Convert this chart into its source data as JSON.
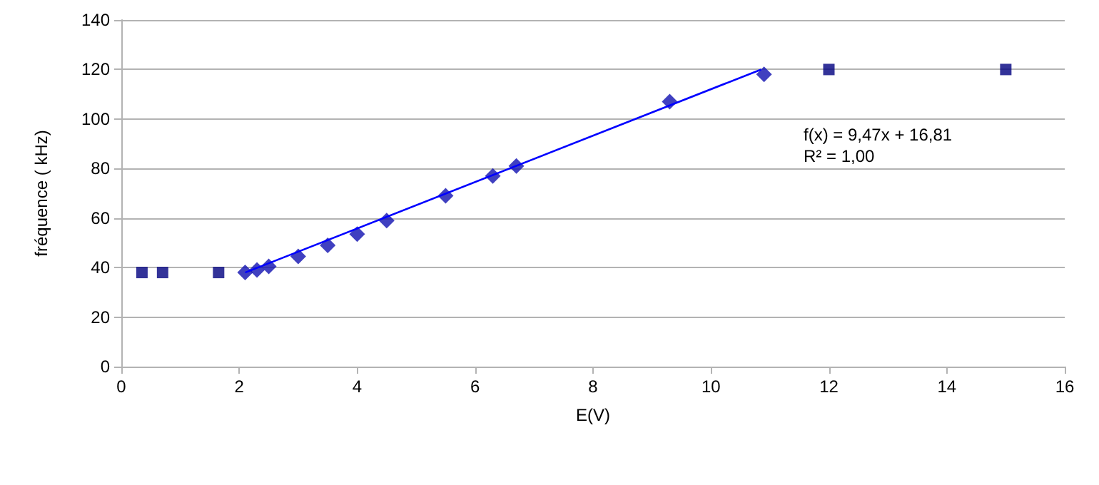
{
  "chart_data": {
    "type": "scatter",
    "xlabel": "E(V)",
    "ylabel": "fréquence ( kHz)",
    "xlim": [
      0,
      16
    ],
    "xticks": [
      0,
      2,
      4,
      6,
      8,
      10,
      12,
      14,
      16
    ],
    "ylim": [
      0,
      140
    ],
    "yticks": [
      0,
      20,
      40,
      60,
      80,
      100,
      120,
      140
    ],
    "grid": "y",
    "series": [
      {
        "color": "#000080",
        "marker": "square",
        "x": [
          0.35,
          0.7,
          1.65,
          12,
          15
        ],
        "values": [
          38,
          38,
          38,
          120,
          120
        ]
      },
      {
        "color": "#1010b0",
        "marker": "diamond",
        "x": [
          2.1,
          2.3,
          2.5,
          3,
          3.5,
          4,
          4.5,
          5.5,
          6.3,
          6.7,
          9.3,
          10.9
        ],
        "values": [
          38,
          39,
          40.5,
          44.5,
          49,
          53.5,
          59,
          69,
          77,
          81,
          107,
          118
        ]
      },
      {
        "type": "line",
        "color": "#0000ff",
        "marker": "none",
        "x": [
          2.1,
          10.85
        ],
        "values": [
          38,
          120
        ]
      }
    ],
    "annotations": [
      "f(x) = 9,47x + 16,81\nR² = 1,00"
    ]
  }
}
